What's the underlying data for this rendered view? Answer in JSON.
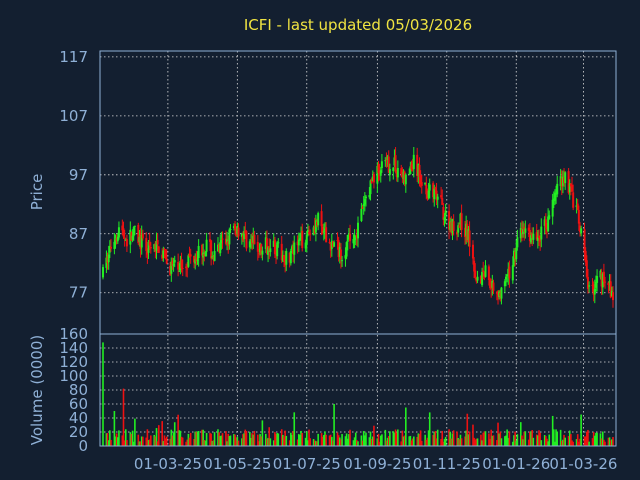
{
  "chart_data": {
    "type": "candlestick",
    "title": "ICFI - last updated 05/03/2026",
    "price_panel": {
      "ylabel": "Price",
      "yticks": [
        77,
        87,
        97,
        107,
        117
      ],
      "ylim": [
        70,
        118
      ],
      "grid": true
    },
    "volume_panel": {
      "ylabel": "Volume (0000)",
      "yticks": [
        0,
        20,
        40,
        60,
        80,
        100,
        120,
        140,
        160
      ],
      "ylim": [
        0,
        160
      ],
      "grid": true
    },
    "x_ticks": [
      "01-03-25",
      "01-05-25",
      "01-07-25",
      "01-09-25",
      "01-11-25",
      "01-01-26",
      "01-03-26"
    ],
    "up_color": "#22ee22",
    "down_color": "#ee1111",
    "price_series": [
      [
        "2025-01-03",
        80
      ],
      [
        "2025-01-10",
        85
      ],
      [
        "2025-01-17",
        88
      ],
      [
        "2025-01-24",
        86
      ],
      [
        "2025-01-31",
        87
      ],
      [
        "2025-02-07",
        85
      ],
      [
        "2025-02-14",
        84
      ],
      [
        "2025-02-21",
        85
      ],
      [
        "2025-02-28",
        82
      ],
      [
        "2025-03-07",
        81
      ],
      [
        "2025-03-14",
        82
      ],
      [
        "2025-03-21",
        83
      ],
      [
        "2025-03-28",
        84
      ],
      [
        "2025-04-04",
        85
      ],
      [
        "2025-04-11",
        83
      ],
      [
        "2025-04-18",
        85
      ],
      [
        "2025-04-25",
        87
      ],
      [
        "2025-05-02",
        88
      ],
      [
        "2025-05-09",
        86
      ],
      [
        "2025-05-16",
        85
      ],
      [
        "2025-05-23",
        84
      ],
      [
        "2025-05-30",
        86
      ],
      [
        "2025-06-06",
        84
      ],
      [
        "2025-06-13",
        83
      ],
      [
        "2025-06-20",
        84
      ],
      [
        "2025-06-27",
        86
      ],
      [
        "2025-07-04",
        88
      ],
      [
        "2025-07-11",
        89
      ],
      [
        "2025-07-18",
        86
      ],
      [
        "2025-07-25",
        85
      ],
      [
        "2025-08-01",
        84
      ],
      [
        "2025-08-08",
        86
      ],
      [
        "2025-08-15",
        88
      ],
      [
        "2025-08-22",
        93
      ],
      [
        "2025-08-29",
        97
      ],
      [
        "2025-09-05",
        98
      ],
      [
        "2025-09-12",
        99
      ],
      [
        "2025-09-19",
        98
      ],
      [
        "2025-09-26",
        96
      ],
      [
        "2025-10-03",
        99
      ],
      [
        "2025-10-10",
        96
      ],
      [
        "2025-10-17",
        94
      ],
      [
        "2025-10-24",
        93
      ],
      [
        "2025-10-31",
        90
      ],
      [
        "2025-11-07",
        88
      ],
      [
        "2025-11-14",
        89
      ],
      [
        "2025-11-21",
        86
      ],
      [
        "2025-11-28",
        79
      ],
      [
        "2025-12-05",
        81
      ],
      [
        "2025-12-12",
        78
      ],
      [
        "2025-12-19",
        77
      ],
      [
        "2025-12-26",
        80
      ],
      [
        "2026-01-02",
        86
      ],
      [
        "2026-01-09",
        88
      ],
      [
        "2026-01-16",
        86
      ],
      [
        "2026-01-23",
        87
      ],
      [
        "2026-01-30",
        90
      ],
      [
        "2026-02-06",
        95
      ],
      [
        "2026-02-13",
        97
      ],
      [
        "2026-02-20",
        93
      ],
      [
        "2026-02-27",
        87
      ],
      [
        "2026-03-06",
        77
      ],
      [
        "2026-03-13",
        79
      ],
      [
        "2026-03-20",
        80
      ],
      [
        "2026-03-27",
        76
      ]
    ]
  }
}
